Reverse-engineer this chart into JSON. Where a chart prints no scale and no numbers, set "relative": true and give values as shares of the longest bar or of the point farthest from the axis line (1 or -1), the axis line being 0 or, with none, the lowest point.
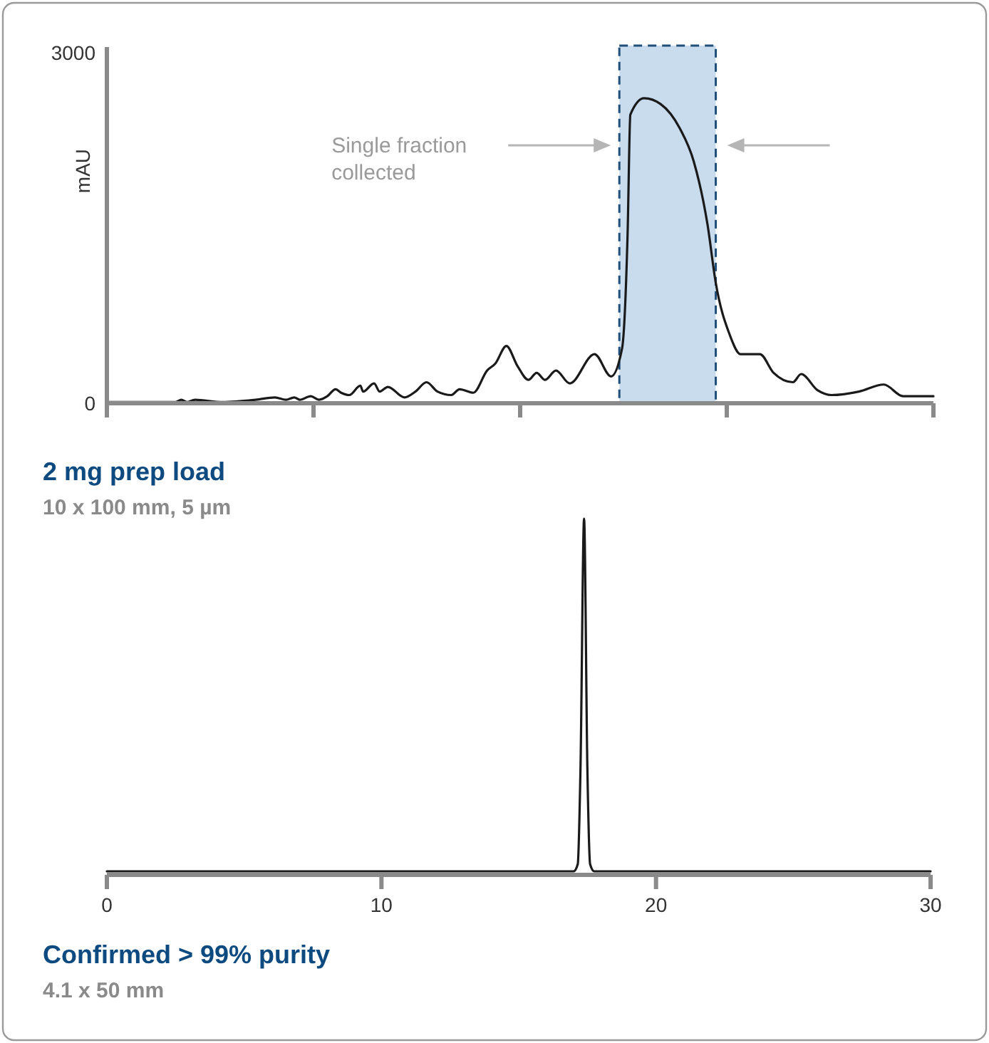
{
  "chart_data": [
    {
      "type": "line",
      "title": "2 mg prep load",
      "subtitle": "10 x 100 mm, 5 µm",
      "ylabel": "mAU",
      "xlim": [
        0,
        30
      ],
      "ylim": [
        0,
        3000
      ],
      "xticks": [
        {
          "value": 0,
          "label": null
        },
        {
          "value": 7.5,
          "label": null
        },
        {
          "value": 15,
          "label": null
        },
        {
          "value": 22.5,
          "label": null
        },
        {
          "value": 30,
          "label": null
        }
      ],
      "yticks": [
        0,
        3000
      ],
      "tick_labels": "y",
      "bands": [
        {
          "axis": "x",
          "from": 18.6,
          "to": 22.1,
          "color": "#c9dcee"
        }
      ],
      "annotations": [
        "Single fraction collected"
      ],
      "series": [
        {
          "color": "#1a1a1a",
          "x": [
            0,
            2.5,
            2.7,
            2.9,
            3.2,
            4.2,
            5.4,
            6.1,
            6.5,
            6.8,
            7.0,
            7.4,
            7.7,
            8.0,
            8.3,
            8.5,
            8.8,
            9.2,
            9.3,
            9.7,
            9.9,
            10.2,
            10.8,
            11.2,
            11.6,
            12.0,
            12.5,
            12.8,
            13.3,
            13.8,
            14.1,
            14.5,
            14.9,
            15.3,
            15.6,
            15.9,
            16.3,
            16.8,
            17.7,
            18.3,
            18.7,
            18.9,
            19.0,
            19.5,
            20.1,
            20.8,
            21.3,
            21.8,
            22.1,
            22.6,
            23.0,
            23.7,
            24.2,
            24.9,
            25.2,
            25.8,
            26.3,
            27.3,
            28.2,
            28.9,
            30.0
          ],
          "values": [
            10,
            10,
            30,
            10,
            30,
            10,
            30,
            50,
            30,
            50,
            30,
            60,
            30,
            60,
            120,
            90,
            70,
            150,
            100,
            170,
            100,
            140,
            50,
            100,
            180,
            100,
            70,
            120,
            90,
            280,
            340,
            490,
            320,
            200,
            260,
            200,
            280,
            170,
            420,
            230,
            470,
            1450,
            2470,
            2610,
            2560,
            2350,
            2070,
            1530,
            1030,
            590,
            420,
            420,
            260,
            180,
            250,
            110,
            70,
            100,
            160,
            60,
            60
          ]
        }
      ]
    },
    {
      "type": "line",
      "title": "Confirmed > 99% purity",
      "subtitle": "4.1 x 50 mm",
      "relative": true,
      "xlim": [
        0,
        30
      ],
      "xticks": [
        0,
        10,
        20,
        30
      ],
      "tick_labels": "x",
      "series": [
        {
          "color": "#1a1a1a",
          "x": [
            0,
            17.0,
            17.15,
            17.25,
            17.38,
            17.5,
            17.6,
            17.75,
            30
          ],
          "values": [
            0.01,
            0.01,
            0.03,
            0.3,
            1,
            0.3,
            0.03,
            0.01,
            0.01
          ]
        }
      ]
    }
  ]
}
